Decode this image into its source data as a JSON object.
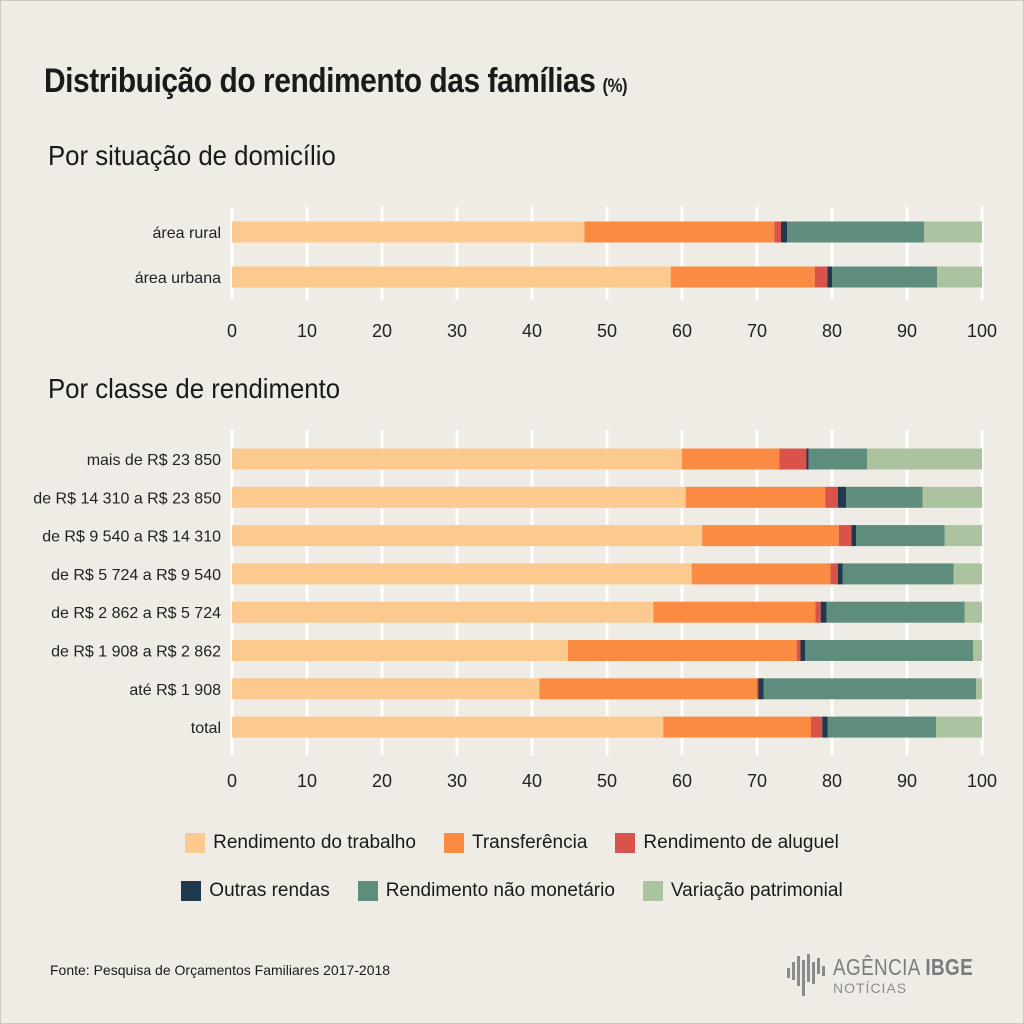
{
  "title": "Distribuição do rendimento das famílias",
  "title_unit": "(%)",
  "legend": [
    {
      "label": "Rendimento do trabalho",
      "color": "#fcc98e"
    },
    {
      "label": "Transferência",
      "color": "#fb8a43"
    },
    {
      "label": "Rendimento de aluguel",
      "color": "#d9534a"
    },
    {
      "label": "Outras rendas",
      "color": "#1f3a4e"
    },
    {
      "label": "Rendimento não monetário",
      "color": "#5e8c7d"
    },
    {
      "label": "Variação patrimonial",
      "color": "#acc39f"
    }
  ],
  "source": "Fonte:  Pesquisa de Orçamentos Familiares 2017-2018",
  "logo": {
    "agencia": "AGÊNCIA",
    "ibge": "IBGE",
    "noticias": "NOTÍCIAS"
  },
  "chart_data": [
    {
      "type": "bar",
      "orientation": "horizontal",
      "stacked": true,
      "title": "Por situação de domicílio",
      "xlim": [
        0,
        100
      ],
      "xticks": [
        0,
        10,
        20,
        30,
        40,
        50,
        60,
        70,
        80,
        90,
        100
      ],
      "categories": [
        "área rural",
        "área urbana"
      ],
      "series": [
        {
          "name": "Rendimento do trabalho",
          "values": [
            47.0,
            58.5
          ]
        },
        {
          "name": "Transferência",
          "values": [
            25.3,
            19.2
          ]
        },
        {
          "name": "Rendimento de aluguel",
          "values": [
            0.9,
            1.7
          ]
        },
        {
          "name": "Outras rendas",
          "values": [
            0.8,
            0.6
          ]
        },
        {
          "name": "Rendimento não monetário",
          "values": [
            18.3,
            14.0
          ]
        },
        {
          "name": "Variação patrimonial",
          "values": [
            7.7,
            6.0
          ]
        }
      ]
    },
    {
      "type": "bar",
      "orientation": "horizontal",
      "stacked": true,
      "title": "Por classe de rendimento",
      "xlim": [
        0,
        100
      ],
      "xticks": [
        0,
        10,
        20,
        30,
        40,
        50,
        60,
        70,
        80,
        90,
        100
      ],
      "categories": [
        "mais de R$ 23 850",
        "de R$ 14 310 a R$ 23 850",
        "de R$ 9 540 a R$ 14 310",
        "de R$ 5 724 a R$ 9 540",
        "de R$ 2 862 a R$ 5 724",
        "de R$ 1 908 a R$ 2 862",
        "até R$ 1 908",
        "total"
      ],
      "series": [
        {
          "name": "Rendimento do trabalho",
          "values": [
            60.0,
            60.5,
            62.7,
            61.3,
            56.2,
            44.8,
            41.0,
            57.5
          ]
        },
        {
          "name": "Transferência",
          "values": [
            13.0,
            18.6,
            18.2,
            18.5,
            21.6,
            30.5,
            29.0,
            19.7
          ]
        },
        {
          "name": "Rendimento de aluguel",
          "values": [
            3.6,
            1.7,
            1.7,
            1.0,
            0.7,
            0.5,
            0.2,
            1.5
          ]
        },
        {
          "name": "Outras rendas",
          "values": [
            0.3,
            1.1,
            0.6,
            0.6,
            0.8,
            0.6,
            0.7,
            0.7
          ]
        },
        {
          "name": "Rendimento não monetário",
          "values": [
            7.8,
            10.2,
            11.8,
            14.8,
            18.4,
            22.4,
            28.3,
            14.5
          ]
        },
        {
          "name": "Variação patrimonial",
          "values": [
            15.3,
            7.9,
            5.0,
            3.8,
            2.3,
            1.2,
            0.8,
            6.1
          ]
        }
      ]
    }
  ]
}
